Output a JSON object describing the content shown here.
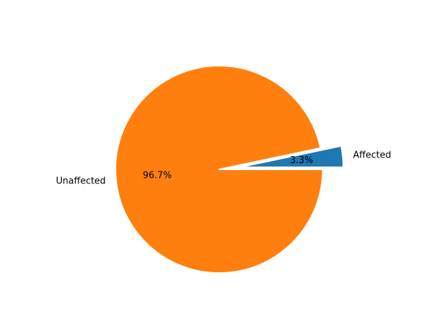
{
  "chart_data": {
    "type": "pie",
    "title": "",
    "labels": [
      "Affected",
      "Unaffected"
    ],
    "values": [
      3.3,
      96.7
    ],
    "percent_labels": [
      "3.3%",
      "96.7%"
    ],
    "colors": [
      "#1f77b4",
      "#ff7f0e"
    ],
    "explode": [
      0.2,
      0
    ],
    "start_angle_deg": 0,
    "edge_color": "#ffffff"
  }
}
